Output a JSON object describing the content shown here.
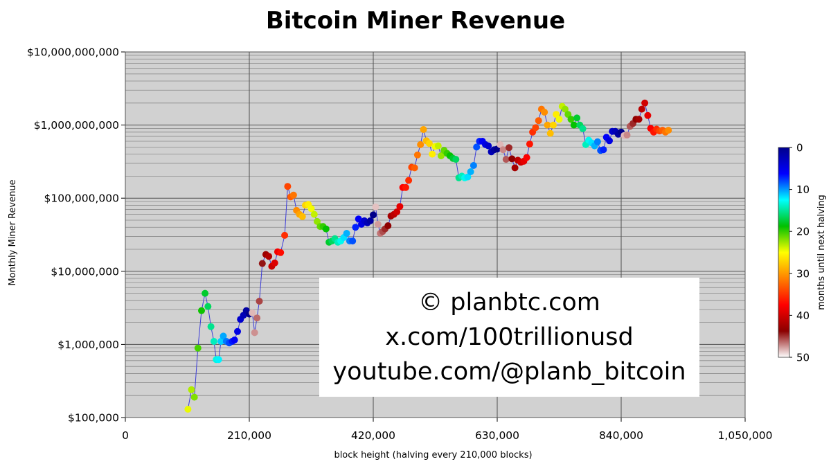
{
  "chart_data": {
    "type": "scatter",
    "title": "Bitcoin Miner Revenue",
    "xlabel": "block height (halving every 210,000 blocks)",
    "ylabel": "Monthly Miner Revenue",
    "xlim": [
      0,
      1050000
    ],
    "ylim": [
      100000,
      10000000000
    ],
    "y_scale": "log",
    "grid": true,
    "x_ticks": [
      {
        "value": 0,
        "label": "0"
      },
      {
        "value": 210000,
        "label": "210,000"
      },
      {
        "value": 420000,
        "label": "420,000"
      },
      {
        "value": 630000,
        "label": "630,000"
      },
      {
        "value": 840000,
        "label": "840,000"
      },
      {
        "value": 1050000,
        "label": "1,050,000"
      }
    ],
    "y_ticks": [
      {
        "value": 100000,
        "label": "$100,000"
      },
      {
        "value": 1000000,
        "label": "$1,000,000"
      },
      {
        "value": 10000000,
        "label": "$10,000,000"
      },
      {
        "value": 100000000,
        "label": "$100,000,000"
      },
      {
        "value": 1000000000,
        "label": "$1,000,000,000"
      },
      {
        "value": 10000000000,
        "label": "$10,000,000,000"
      }
    ],
    "colorbar": {
      "label": "months until next halving",
      "range": [
        0,
        50
      ],
      "ticks": [
        "0",
        "10",
        "20",
        "30",
        "40",
        "50"
      ]
    },
    "points": [
      [
        106000,
        130000
      ],
      [
        112000,
        240000
      ],
      [
        117000,
        190000
      ],
      [
        123000,
        890000
      ],
      [
        129000,
        2900000
      ],
      [
        135000,
        5000000
      ],
      [
        140000,
        3300000
      ],
      [
        145000,
        1750000
      ],
      [
        150000,
        1100000
      ],
      [
        154000,
        620000
      ],
      [
        158000,
        620000
      ],
      [
        162000,
        1100000
      ],
      [
        166000,
        1300000
      ],
      [
        171000,
        1100000
      ],
      [
        176000,
        1050000
      ],
      [
        181000,
        1100000
      ],
      [
        185000,
        1150000
      ],
      [
        190000,
        1500000
      ],
      [
        195000,
        2200000
      ],
      [
        200000,
        2500000
      ],
      [
        205000,
        2900000
      ],
      [
        210000,
        2600000
      ],
      [
        215000,
        2700000
      ],
      [
        219000,
        1450000
      ],
      [
        223000,
        2300000
      ],
      [
        227000,
        3900000
      ],
      [
        232000,
        12800000
      ],
      [
        238000,
        17000000
      ],
      [
        243000,
        16000000
      ],
      [
        248000,
        11700000
      ],
      [
        253000,
        13000000
      ],
      [
        258000,
        18500000
      ],
      [
        263000,
        18000000
      ],
      [
        270000,
        31000000
      ],
      [
        275000,
        145000000
      ],
      [
        280000,
        104000000
      ],
      [
        285000,
        110000000
      ],
      [
        290000,
        68000000
      ],
      [
        295000,
        60000000
      ],
      [
        300000,
        56000000
      ],
      [
        305000,
        80000000
      ],
      [
        310000,
        82000000
      ],
      [
        315000,
        72000000
      ],
      [
        320000,
        60000000
      ],
      [
        325000,
        48000000
      ],
      [
        330000,
        41000000
      ],
      [
        335000,
        41000000
      ],
      [
        340000,
        38000000
      ],
      [
        345000,
        25000000
      ],
      [
        350000,
        26000000
      ],
      [
        355000,
        28000000
      ],
      [
        360000,
        25000000
      ],
      [
        365000,
        26000000
      ],
      [
        370000,
        29000000
      ],
      [
        375000,
        33000000
      ],
      [
        380000,
        26000000
      ],
      [
        385000,
        26000000
      ],
      [
        390000,
        40000000
      ],
      [
        395000,
        52000000
      ],
      [
        400000,
        44000000
      ],
      [
        405000,
        49000000
      ],
      [
        410000,
        46000000
      ],
      [
        415000,
        49000000
      ],
      [
        420000,
        59000000
      ],
      [
        424000,
        76000000
      ],
      [
        428000,
        44000000
      ],
      [
        432000,
        33000000
      ],
      [
        436000,
        35000000
      ],
      [
        440000,
        38000000
      ],
      [
        445000,
        42000000
      ],
      [
        450000,
        57000000
      ],
      [
        455000,
        60000000
      ],
      [
        460000,
        65000000
      ],
      [
        465000,
        77000000
      ],
      [
        470000,
        140000000
      ],
      [
        475000,
        140000000
      ],
      [
        480000,
        175000000
      ],
      [
        485000,
        265000000
      ],
      [
        490000,
        260000000
      ],
      [
        495000,
        390000000
      ],
      [
        500000,
        540000000
      ],
      [
        505000,
        870000000
      ],
      [
        510000,
        610000000
      ],
      [
        515000,
        560000000
      ],
      [
        520000,
        400000000
      ],
      [
        525000,
        510000000
      ],
      [
        530000,
        520000000
      ],
      [
        535000,
        380000000
      ],
      [
        540000,
        450000000
      ],
      [
        545000,
        410000000
      ],
      [
        550000,
        380000000
      ],
      [
        555000,
        350000000
      ],
      [
        560000,
        340000000
      ],
      [
        565000,
        190000000
      ],
      [
        570000,
        200000000
      ],
      [
        575000,
        190000000
      ],
      [
        580000,
        195000000
      ],
      [
        585000,
        230000000
      ],
      [
        590000,
        280000000
      ],
      [
        595000,
        500000000
      ],
      [
        600000,
        600000000
      ],
      [
        605000,
        600000000
      ],
      [
        610000,
        540000000
      ],
      [
        615000,
        520000000
      ],
      [
        620000,
        430000000
      ],
      [
        625000,
        460000000
      ],
      [
        630000,
        470000000
      ],
      [
        635000,
        540000000
      ],
      [
        640000,
        460000000
      ],
      [
        645000,
        340000000
      ],
      [
        650000,
        490000000
      ],
      [
        655000,
        345000000
      ],
      [
        660000,
        260000000
      ],
      [
        665000,
        330000000
      ],
      [
        670000,
        310000000
      ],
      [
        675000,
        320000000
      ],
      [
        680000,
        360000000
      ],
      [
        685000,
        550000000
      ],
      [
        690000,
        800000000
      ],
      [
        695000,
        920000000
      ],
      [
        700000,
        1150000000
      ],
      [
        705000,
        1650000000
      ],
      [
        710000,
        1500000000
      ],
      [
        715000,
        1000000000
      ],
      [
        720000,
        770000000
      ],
      [
        725000,
        1000000000
      ],
      [
        730000,
        1400000000
      ],
      [
        735000,
        1200000000
      ],
      [
        740000,
        1800000000
      ],
      [
        745000,
        1650000000
      ],
      [
        750000,
        1400000000
      ],
      [
        755000,
        1200000000
      ],
      [
        760000,
        1000000000
      ],
      [
        765000,
        1250000000
      ],
      [
        770000,
        1000000000
      ],
      [
        775000,
        890000000
      ],
      [
        780000,
        540000000
      ],
      [
        785000,
        620000000
      ],
      [
        790000,
        570000000
      ],
      [
        795000,
        520000000
      ],
      [
        800000,
        590000000
      ],
      [
        805000,
        450000000
      ],
      [
        810000,
        460000000
      ],
      [
        815000,
        680000000
      ],
      [
        820000,
        610000000
      ],
      [
        825000,
        820000000
      ],
      [
        830000,
        820000000
      ],
      [
        835000,
        750000000
      ],
      [
        840000,
        800000000
      ],
      [
        845000,
        720000000
      ],
      [
        850000,
        730000000
      ],
      [
        855000,
        960000000
      ],
      [
        860000,
        1050000000
      ],
      [
        865000,
        1200000000
      ],
      [
        870000,
        1200000000
      ],
      [
        875000,
        1650000000
      ],
      [
        880000,
        2000000000
      ],
      [
        885000,
        1350000000
      ],
      [
        890000,
        900000000
      ],
      [
        895000,
        800000000
      ],
      [
        900000,
        880000000
      ],
      [
        905000,
        830000000
      ],
      [
        910000,
        850000000
      ],
      [
        915000,
        800000000
      ],
      [
        920000,
        850000000
      ]
    ]
  },
  "watermark": {
    "line1": "© planbtc.com",
    "line2": "x.com/100trillionusd",
    "line3": "youtube.com/@planb_bitcoin"
  },
  "colors": {
    "plot_background": "#d1d1d1",
    "grid_major": "#505050",
    "grid_minor": "#8a8a8a",
    "line": "#3b3bd8",
    "colormap": [
      "#00008b",
      "#0000ff",
      "#00ffff",
      "#00c000",
      "#ffff00",
      "#ff8000",
      "#ff0000",
      "#8b0000",
      "#ffffff"
    ]
  }
}
